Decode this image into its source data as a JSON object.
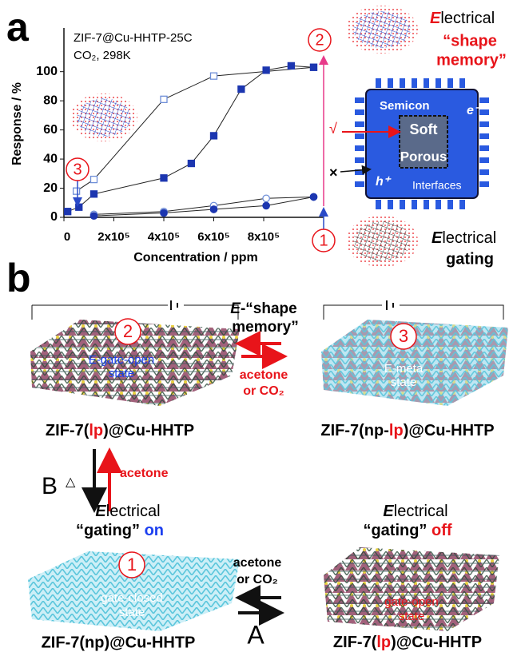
{
  "chart_data": {
    "type": "line",
    "annotation": [
      "ZIF-7@Cu-HHTP-25C",
      "CO₂, 298K"
    ],
    "x_label": "Concentration / ppm",
    "y_label": "Response / %",
    "xlim": [
      0,
      1040000
    ],
    "ylim": [
      0,
      130
    ],
    "xticks": [
      {
        "value": 0,
        "label": "0"
      },
      {
        "value": 200000,
        "label": "2x10⁵"
      },
      {
        "value": 400000,
        "label": "4x10⁵"
      },
      {
        "value": 600000,
        "label": "6x10⁵"
      },
      {
        "value": 800000,
        "label": "8x10⁵"
      }
    ],
    "yticks": [
      0,
      20,
      40,
      60,
      80,
      100
    ],
    "series": [
      {
        "marker": "square-open",
        "color": "#6f8fd8",
        "x": [
          50000,
          120000,
          400000,
          600000,
          1000000
        ],
        "values": [
          18,
          26,
          81,
          97,
          103
        ]
      },
      {
        "marker": "square",
        "color": "#1c36b0",
        "x": [
          15000,
          60000,
          120000,
          400000,
          510000,
          600000,
          710000,
          810000,
          910000,
          1000000
        ],
        "values": [
          4,
          7,
          16,
          27,
          37,
          56,
          88,
          101,
          104,
          103
        ]
      },
      {
        "marker": "circle-open",
        "color": "#6f8fd8",
        "x": [
          120000,
          400000,
          600000,
          810000,
          1000000
        ],
        "values": [
          2,
          4,
          8,
          13,
          14
        ]
      },
      {
        "marker": "circle",
        "color": "#1c36b0",
        "x": [
          120000,
          400000,
          600000,
          810000,
          1000000
        ],
        "values": [
          1,
          3,
          5.5,
          8,
          14
        ]
      }
    ]
  },
  "panel_a": {
    "letter": "a",
    "markers": [
      "1",
      "2",
      "3"
    ],
    "shape_memory": {
      "first": "E",
      "rest": "lectrical",
      "lines": [
        "“shape",
        "memory”"
      ]
    },
    "chip": {
      "semicon": "Semicon",
      "electron": "e⁻",
      "soft": "Soft",
      "porous": "Porous",
      "hole": "h⁺",
      "interfaces": "Interfaces",
      "check": "√",
      "cross": "×"
    },
    "gating": {
      "first": "E",
      "rest": "lectrical",
      "word": "gating"
    }
  },
  "panel_b": {
    "letter": "b",
    "state_2": {
      "marker": "2",
      "lines": [
        "E-gate-open",
        "state"
      ]
    },
    "state_3": {
      "marker": "3",
      "lines": [
        "E-meta",
        "state"
      ]
    },
    "shape_memory": {
      "first": "E",
      "lines": [
        "-“shape",
        "memory”"
      ]
    },
    "top_gas": [
      "acetone",
      "or CO₂"
    ],
    "label_lp_top": [
      "ZIF-7(",
      "lp",
      ")@Cu-HHTP"
    ],
    "label_np_lp": [
      "ZIF-7(np-",
      "lp",
      ")@Cu-HHTP"
    ],
    "path_b": {
      "letter": "B",
      "heat": "△",
      "gas": "acetone"
    },
    "gating_on": {
      "first": "E",
      "rest": "lectrical",
      "word": "“gating”",
      "state": "on"
    },
    "gating_off": {
      "first": "E",
      "rest": "lectrical",
      "word": "“gating”",
      "state": "off"
    },
    "state_1": {
      "marker": "1",
      "lines": [
        "gate-closed",
        "state"
      ]
    },
    "state_open": {
      "lines": [
        "gate-open",
        "state"
      ]
    },
    "bottom_gas": [
      "acetone",
      "or CO₂"
    ],
    "path_a": "A",
    "label_np": "ZIF-7(np)@Cu-HHTP",
    "label_lp_bottom": [
      "ZIF-7(",
      "lp",
      ")@Cu-HHTP"
    ]
  }
}
